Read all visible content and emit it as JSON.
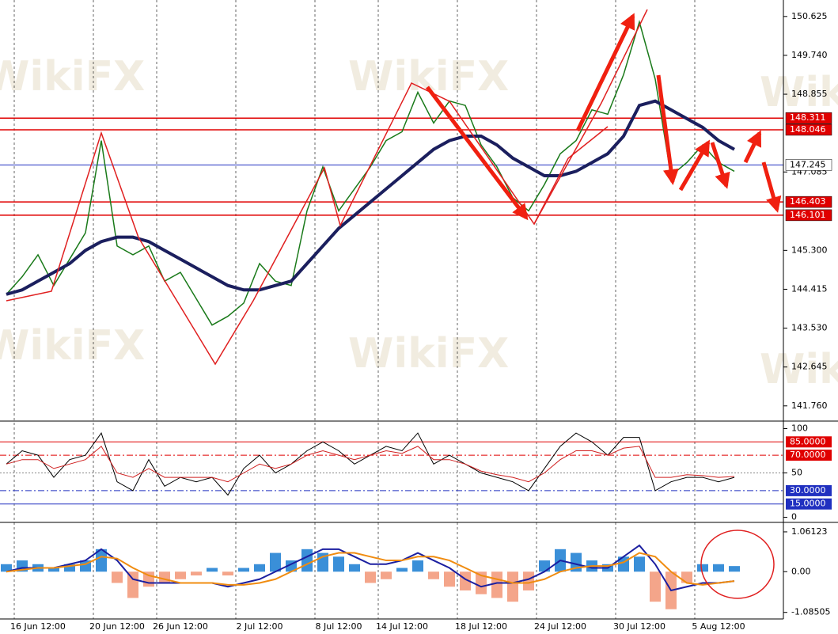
{
  "watermark": "WikiFX",
  "chart_data": [
    {
      "type": "line",
      "categories": [
        null,
        null,
        "16 Jun 12:00",
        null,
        null,
        null,
        null,
        "20 Jun 12:00",
        null,
        null,
        null,
        "26 Jun 12:00",
        null,
        null,
        null,
        null,
        "2 Jul 12:00",
        null,
        null,
        null,
        null,
        "8 Jul 12:00",
        null,
        null,
        null,
        "14 Jul 12:00",
        null,
        null,
        null,
        null,
        "18 Jul 12:00",
        null,
        null,
        null,
        null,
        "24 Jul 12:00",
        null,
        null,
        null,
        null,
        "30 Jul 12:00",
        null,
        null,
        null,
        null,
        "5 Aug 12:00",
        null
      ],
      "series": [
        {
          "color": "#1a7a1a",
          "values": [
            144.3,
            144.7,
            145.2,
            144.5,
            145.1,
            145.7,
            147.8,
            145.4,
            145.2,
            145.4,
            144.6,
            144.8,
            144.2,
            143.6,
            143.8,
            144.1,
            145.0,
            144.6,
            144.5,
            146.2,
            147.2,
            146.2,
            146.7,
            147.2,
            147.8,
            148.0,
            148.9,
            148.2,
            148.7,
            148.6,
            147.7,
            147.2,
            146.5,
            146.2,
            146.8,
            147.5,
            147.8,
            148.5,
            148.4,
            149.3,
            150.5,
            149.2,
            147.0,
            147.3,
            147.7,
            147.3,
            147.1
          ]
        },
        {
          "color": "#1b1f5e",
          "values": [
            144.3,
            144.4,
            144.6,
            144.8,
            145.0,
            145.3,
            145.5,
            145.6,
            145.6,
            145.5,
            145.3,
            145.1,
            144.9,
            144.7,
            144.5,
            144.4,
            144.4,
            144.5,
            144.6,
            145.0,
            145.4,
            145.8,
            146.1,
            146.4,
            146.7,
            147.0,
            147.3,
            147.6,
            147.8,
            147.9,
            147.9,
            147.7,
            147.4,
            147.2,
            147.0,
            147.0,
            147.1,
            147.3,
            147.5,
            147.9,
            148.6,
            148.7,
            148.5,
            148.3,
            148.1,
            147.8,
            147.6
          ]
        }
      ],
      "ylim": [
        141.45,
        151.0
      ],
      "yticks": [
        150.625,
        {
          "value": 149.74,
          "label": "149.740"
        },
        148.855,
        147.085,
        {
          "value": 145.3,
          "label": "145.300"
        },
        144.415,
        {
          "value": 143.53,
          "label": "143.530"
        },
        142.645,
        {
          "value": 141.76,
          "label": "141.760"
        }
      ],
      "levels": [
        {
          "value": 148.311,
          "color": "#e00000"
        },
        {
          "value": 148.046,
          "color": "#e00000"
        },
        {
          "value": 147.245,
          "color": "#2030c0"
        },
        {
          "value": 146.403,
          "color": "#e00000"
        },
        {
          "value": 146.101,
          "color": "#e00000"
        }
      ]
    },
    {
      "type": "line",
      "series": [
        {
          "color": "#000000",
          "values": [
            60,
            75,
            70,
            45,
            65,
            70,
            95,
            40,
            30,
            65,
            35,
            45,
            40,
            45,
            25,
            55,
            70,
            50,
            60,
            75,
            85,
            75,
            60,
            70,
            80,
            75,
            95,
            60,
            70,
            60,
            50,
            45,
            40,
            30,
            55,
            80,
            95,
            85,
            70,
            90,
            90,
            30,
            40,
            45,
            45,
            40,
            45
          ]
        },
        {
          "color": "#d02020",
          "values": [
            60,
            65,
            65,
            55,
            60,
            65,
            80,
            50,
            45,
            55,
            45,
            45,
            45,
            45,
            40,
            50,
            60,
            55,
            60,
            70,
            75,
            70,
            65,
            70,
            75,
            72,
            80,
            65,
            65,
            60,
            52,
            48,
            45,
            40,
            50,
            65,
            75,
            75,
            70,
            78,
            80,
            45,
            45,
            48,
            47,
            45,
            46
          ]
        }
      ],
      "ylim": [
        -4,
        104
      ],
      "yticks": [
        100,
        50,
        0
      ],
      "levels": [
        {
          "value": 85,
          "label": "85.0000",
          "color": "#e00000"
        },
        {
          "value": 70,
          "label": "70.0000",
          "color": "#e00000"
        },
        {
          "value": 30,
          "label": "30.0000",
          "color": "#2030c0"
        },
        {
          "value": 15,
          "label": "15.0000",
          "color": "#2030c0"
        }
      ]
    },
    {
      "type": "combo",
      "series": [
        {
          "kind": "bar",
          "color": "#3a8fd8",
          "negative_color": "#f4a58a",
          "values": [
            0.2,
            0.3,
            0.2,
            0.1,
            0.2,
            0.3,
            0.6,
            -0.3,
            -0.7,
            -0.4,
            -0.3,
            -0.2,
            -0.1,
            0.1,
            -0.1,
            0.1,
            0.2,
            0.5,
            0.3,
            0.6,
            0.5,
            0.4,
            0.2,
            -0.3,
            -0.2,
            0.1,
            0.3,
            -0.2,
            -0.4,
            -0.5,
            -0.6,
            -0.7,
            -0.8,
            -0.5,
            0.3,
            0.6,
            0.5,
            0.3,
            0.2,
            0.4,
            0.4,
            -0.8,
            -1.0,
            -0.3,
            0.2,
            0.2,
            0.15
          ]
        },
        {
          "kind": "line",
          "color": "#1b1fa0",
          "values": [
            0.0,
            0.1,
            0.1,
            0.1,
            0.2,
            0.3,
            0.6,
            0.3,
            -0.2,
            -0.3,
            -0.3,
            -0.3,
            -0.3,
            -0.3,
            -0.4,
            -0.3,
            -0.2,
            0.0,
            0.2,
            0.4,
            0.6,
            0.6,
            0.4,
            0.2,
            0.2,
            0.3,
            0.5,
            0.3,
            0.1,
            -0.2,
            -0.4,
            -0.3,
            -0.3,
            -0.2,
            0.0,
            0.3,
            0.2,
            0.1,
            0.1,
            0.4,
            0.7,
            0.2,
            -0.5,
            -0.4,
            -0.3,
            -0.3,
            -0.25
          ]
        },
        {
          "kind": "line",
          "color": "#f08c10",
          "values": [
            0.0,
            0.05,
            0.1,
            0.1,
            0.15,
            0.2,
            0.4,
            0.35,
            0.1,
            -0.1,
            -0.2,
            -0.3,
            -0.3,
            -0.3,
            -0.35,
            -0.35,
            -0.3,
            -0.2,
            0.0,
            0.2,
            0.4,
            0.5,
            0.5,
            0.4,
            0.3,
            0.3,
            0.4,
            0.4,
            0.3,
            0.1,
            -0.1,
            -0.2,
            -0.3,
            -0.3,
            -0.2,
            0.0,
            0.1,
            0.15,
            0.15,
            0.25,
            0.5,
            0.4,
            0.0,
            -0.3,
            -0.35,
            -0.3,
            -0.25
          ]
        }
      ],
      "ylim": [
        -1.26,
        1.25
      ],
      "yticks": [
        1.06123,
        {
          "value": 0,
          "label": "0.00"
        },
        -1.08505
      ]
    }
  ]
}
